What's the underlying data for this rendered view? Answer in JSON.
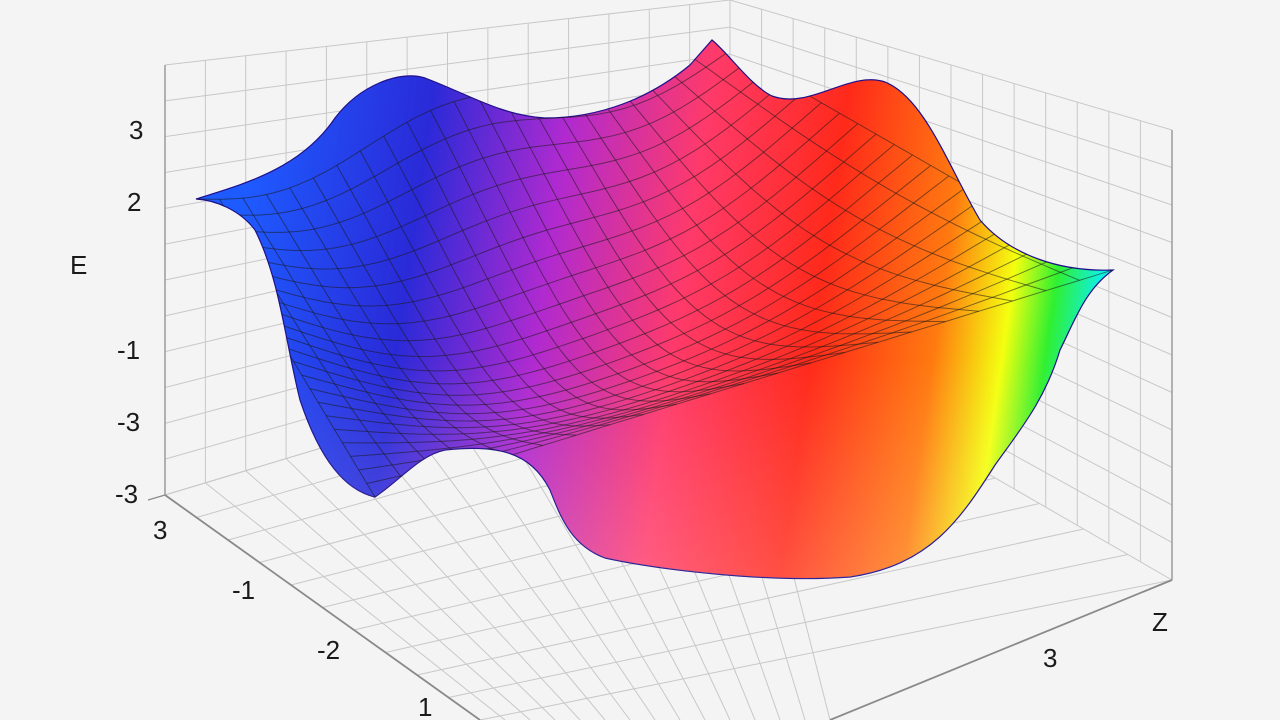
{
  "chart_data": {
    "type": "surface",
    "title": "",
    "xlabel": "",
    "ylabel": "Z",
    "zlabel": "E",
    "z_ticks": [
      "3",
      "2",
      "-1",
      "-3",
      "-3"
    ],
    "x_ticks": [
      "3",
      "-1",
      "-2",
      "1"
    ],
    "y_ticks": [
      "3"
    ],
    "grid": true,
    "colormap": [
      "#1e5bff",
      "#2a2ad8",
      "#b02ad0",
      "#ff3a6a",
      "#ff2a1a",
      "#ff7a10",
      "#f4ff10",
      "#30f030",
      "#10f0e0"
    ],
    "colors": {
      "background": "#f4f4f4",
      "grid": "#c8c8c8",
      "mesh": "#1a1a1a"
    }
  }
}
